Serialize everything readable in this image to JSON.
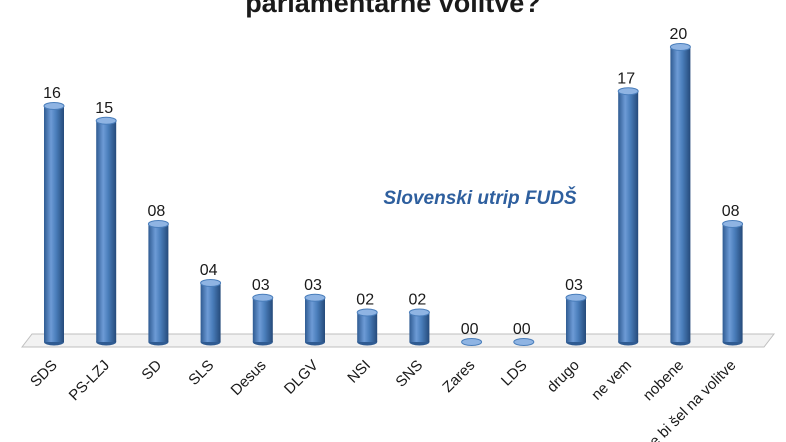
{
  "chart_data": {
    "type": "bar",
    "title": "parlamentarne volitve?",
    "annotation": "Slovenski utrip FUDŠ",
    "categories": [
      "SDS",
      "PS-LZJ",
      "SD",
      "SLS",
      "Desus",
      "DLGV",
      "NSI",
      "SNS",
      "Zares",
      "LDS",
      "drugo",
      "ne vem",
      "nobene",
      "ne bi šel na volitve"
    ],
    "values": [
      16,
      15,
      8,
      4,
      3,
      3,
      2,
      2,
      0,
      0,
      3,
      17,
      20,
      8
    ],
    "value_labels": [
      "16",
      "15",
      "08",
      "04",
      "03",
      "03",
      "02",
      "02",
      "00",
      "00",
      "03",
      "17",
      "20",
      "08"
    ],
    "ylim": [
      0,
      20
    ],
    "grid": false,
    "legend": "none",
    "bar_color": "#4a7ebb",
    "bar_dark": "#2f5b92",
    "bar_light": "#8fb4e3"
  }
}
